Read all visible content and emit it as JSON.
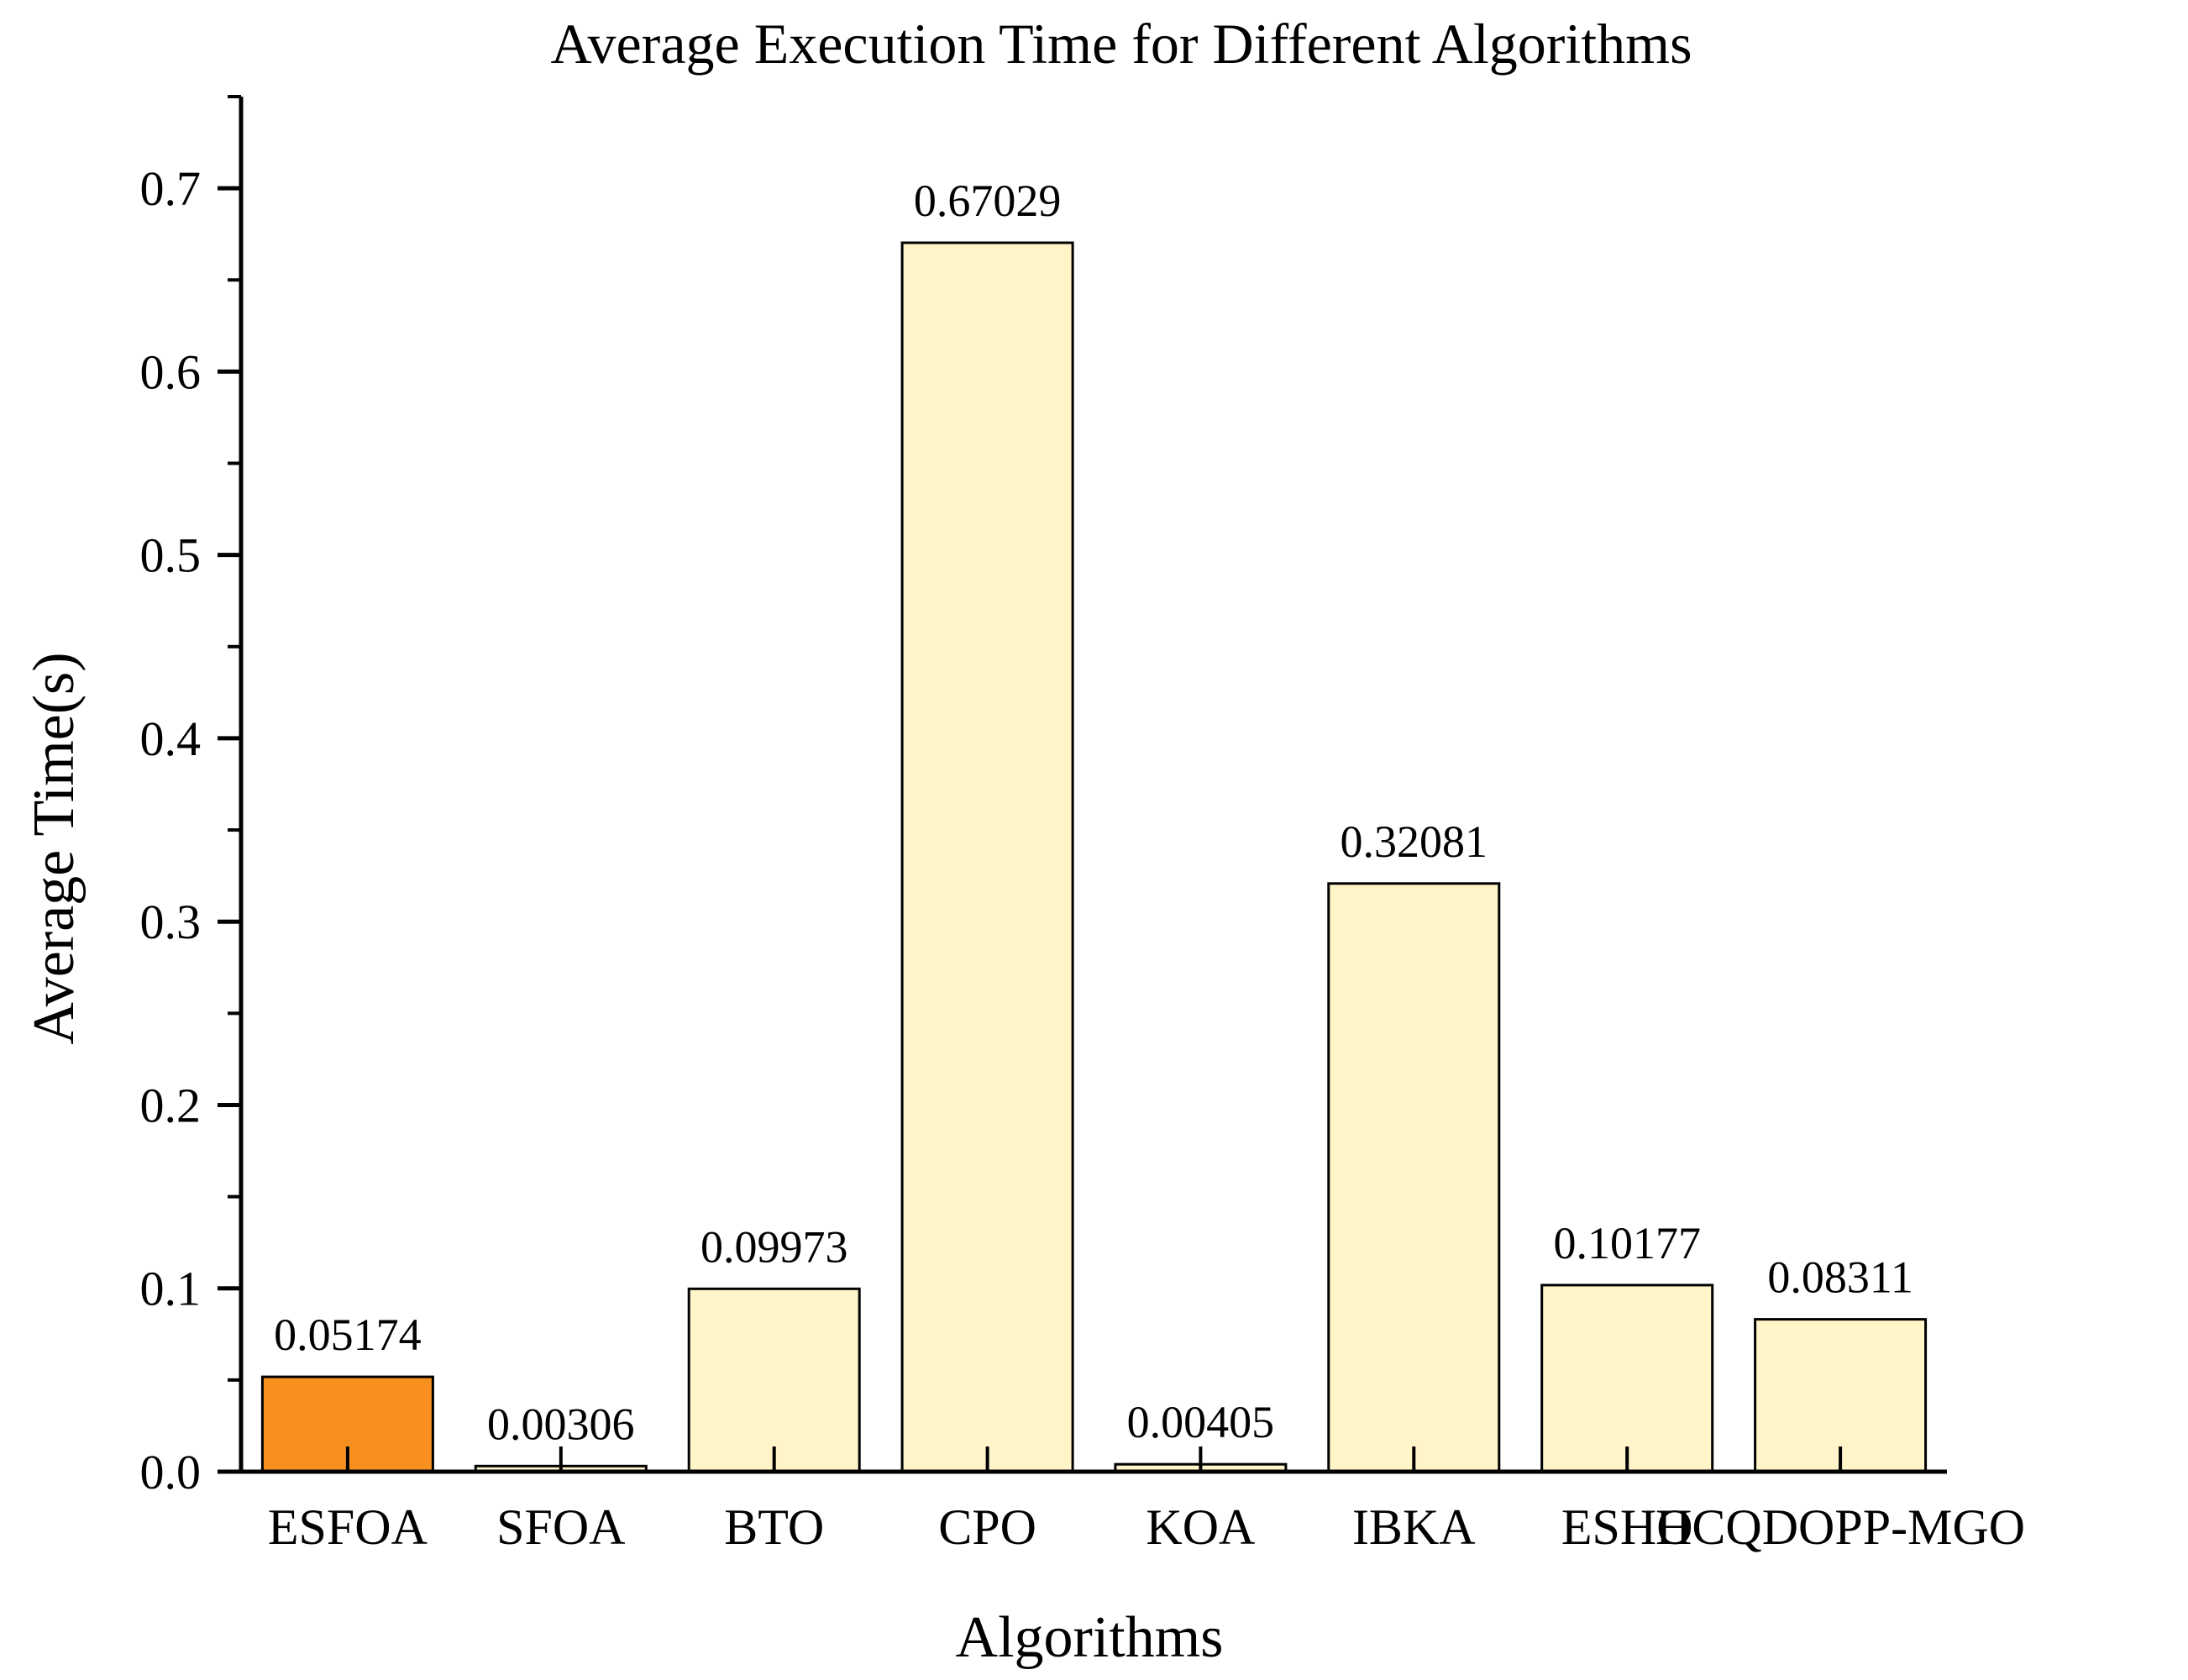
{
  "chart_data": {
    "type": "bar",
    "title": "Average Execution Time for Different Algorithms",
    "xlabel": "Algorithms",
    "ylabel": "Average Time(s)",
    "categories": [
      "ESFOA",
      "SFOA",
      "BTO",
      "CPO",
      "KOA",
      "IBKA",
      "ESHO",
      "HCQDOPP-MGO"
    ],
    "values": [
      0.05174,
      0.00306,
      0.09973,
      0.67029,
      0.00405,
      0.32081,
      0.10177,
      0.08311
    ],
    "value_labels": [
      "0.05174",
      "0.00306",
      "0.09973",
      "0.67029",
      "0.00405",
      "0.32081",
      "0.10177",
      "0.08311"
    ],
    "highlight_index": 0,
    "highlight_color": "#f7901e",
    "bar_color": "#fff5c8",
    "ylim": [
      0,
      0.75
    ],
    "yticks": [
      0.0,
      0.1,
      0.2,
      0.3,
      0.4,
      0.5,
      0.6,
      0.7
    ],
    "ytick_labels": [
      "0.0",
      "0.1",
      "0.2",
      "0.3",
      "0.4",
      "0.5",
      "0.6",
      "0.7"
    ],
    "grid": false,
    "legend": "none"
  }
}
